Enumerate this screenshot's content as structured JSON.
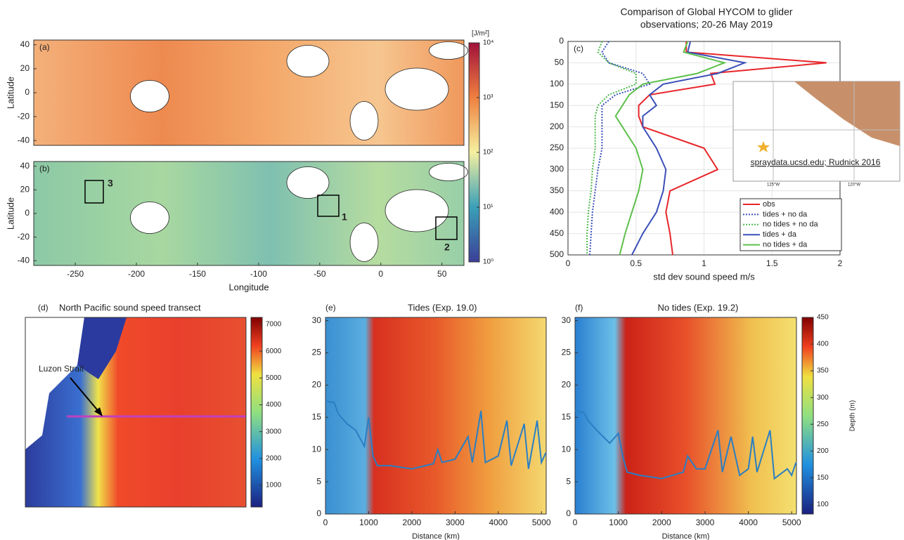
{
  "chart_data": [
    {
      "type": "heatmap",
      "label": "(a)",
      "ylabel": "Latitude",
      "xlim": [
        -284,
        68
      ],
      "ylim": [
        -44,
        44
      ],
      "yticks": [
        -40,
        -20,
        0,
        20,
        40
      ],
      "colorbar": {
        "label": "[J/m²]",
        "log": true,
        "lim": [
          1,
          10000
        ],
        "ticks": [
          {
            "value": 1,
            "label": "10⁰"
          },
          {
            "value": 10,
            "label": "10¹"
          },
          {
            "value": 100,
            "label": "10²"
          },
          {
            "value": 1000,
            "label": "10³"
          },
          {
            "value": 10000,
            "label": "10⁴"
          }
        ]
      }
    },
    {
      "type": "heatmap",
      "label": "(b)",
      "ylabel": "Latitude",
      "xlabel": "Longitude",
      "xlim": [
        -284,
        68
      ],
      "ylim": [
        -44,
        44
      ],
      "xticks": [
        -250,
        -200,
        -150,
        -100,
        -50,
        0,
        50
      ],
      "yticks": [
        -40,
        -20,
        0,
        20,
        40
      ],
      "annotations": [
        "1",
        "2",
        "3"
      ]
    },
    {
      "type": "line",
      "title": [
        "Comparison of Global HYCOM to glider",
        "observations; 20-26 May 2019"
      ],
      "label": "(c)",
      "xlabel": "std dev sound speed m/s",
      "xlim": [
        0,
        2
      ],
      "xticks": [
        0,
        0.5,
        1,
        1.5,
        2
      ],
      "ylim": [
        0,
        500
      ],
      "y_reversed": true,
      "yticks": [
        0,
        50,
        100,
        150,
        200,
        250,
        300,
        350,
        400,
        450,
        500
      ],
      "grid": true,
      "legend": "lower right",
      "y": [
        0,
        25,
        50,
        75,
        100,
        125,
        150,
        175,
        200,
        250,
        300,
        350,
        400,
        450,
        500
      ],
      "series": [
        {
          "name": "obs",
          "color": "#e8262a",
          "linestyle": "solid",
          "values": [
            0.87,
            0.87,
            1.9,
            1.05,
            1.08,
            0.6,
            0.52,
            0.52,
            0.55,
            1.0,
            1.1,
            0.75,
            0.72,
            0.75,
            0.77
          ]
        },
        {
          "name": "tides + no da",
          "color": "#3b4fb8",
          "linestyle": "dotted",
          "values": [
            0.3,
            0.25,
            0.3,
            0.55,
            0.6,
            0.35,
            0.25,
            0.25,
            0.25,
            0.25,
            0.22,
            0.2,
            0.18,
            0.17,
            0.16
          ]
        },
        {
          "name": "no tides + no da",
          "color": "#4cb84a",
          "linestyle": "dotted",
          "values": [
            0.25,
            0.22,
            0.3,
            0.5,
            0.5,
            0.3,
            0.22,
            0.2,
            0.2,
            0.2,
            0.18,
            0.17,
            0.15,
            0.14,
            0.14
          ]
        },
        {
          "name": "tides + da",
          "color": "#3b4fb8",
          "linestyle": "solid",
          "values": [
            0.9,
            0.88,
            1.3,
            1.1,
            0.7,
            0.6,
            0.65,
            0.55,
            0.55,
            0.65,
            0.72,
            0.7,
            0.65,
            0.55,
            0.47
          ]
        },
        {
          "name": "no tides + da",
          "color": "#5cc04a",
          "linestyle": "solid",
          "values": [
            0.88,
            0.85,
            1.15,
            0.95,
            0.55,
            0.45,
            0.4,
            0.35,
            0.4,
            0.5,
            0.55,
            0.52,
            0.47,
            0.42,
            0.38
          ]
        }
      ],
      "inset": {
        "caption": "spraydata.ucsd.edu; Rudnick 2016",
        "xticks": [
          "125°W",
          "120°W"
        ]
      }
    },
    {
      "type": "heatmap",
      "label": "(d)",
      "title": "North Pacific sound speed transect",
      "annotations": [
        "Luzon Strait"
      ],
      "colorbar": {
        "lim": [
          190,
          7260
        ],
        "ticks": [
          1000,
          2000,
          3000,
          4000,
          5000,
          6000,
          7000
        ]
      }
    },
    {
      "type": "line",
      "label": "(e)",
      "title": "Tides (Exp. 19.0)",
      "xlabel": "Distance (km)",
      "xlim": [
        0,
        5110
      ],
      "xticks": [
        0,
        1000,
        2000,
        3000,
        4000,
        5000
      ],
      "ylim": [
        0,
        30.5
      ],
      "yticks": [
        0,
        5,
        10,
        15,
        20,
        25,
        30
      ],
      "x": [
        0,
        200,
        300,
        500,
        700,
        900,
        1000,
        1100,
        1200,
        1500,
        2000,
        2500,
        2600,
        2700,
        3000,
        3300,
        3400,
        3600,
        3700,
        4000,
        4200,
        4300,
        4600,
        4700,
        4900,
        5000,
        5100
      ],
      "series": [
        {
          "color": "#2a7fc4",
          "linestyle": "solid",
          "values": [
            17.5,
            17.3,
            15.5,
            14,
            13,
            10.5,
            15,
            9,
            7.5,
            7.5,
            7.0,
            7.8,
            10,
            8,
            8.5,
            12,
            8,
            16,
            8,
            9,
            14.5,
            7.5,
            14,
            7,
            14.5,
            8,
            9.5
          ]
        }
      ]
    },
    {
      "type": "line",
      "label": "(f)",
      "title": "No tides (Exp. 19.2)",
      "xlabel": "Distance (km)",
      "xlim": [
        0,
        5110
      ],
      "xticks": [
        0,
        1000,
        2000,
        3000,
        4000,
        5000
      ],
      "ylim": [
        0,
        30.5
      ],
      "yticks": [
        0,
        5,
        10,
        15,
        20,
        25,
        30
      ],
      "x": [
        0,
        200,
        300,
        500,
        800,
        1000,
        1100,
        1200,
        1500,
        2000,
        2500,
        2600,
        2800,
        3000,
        3300,
        3400,
        3600,
        3800,
        4000,
        4100,
        4200,
        4500,
        4600,
        4900,
        5000,
        5100
      ],
      "series": [
        {
          "color": "#2a7fc4",
          "linestyle": "solid",
          "values": [
            16,
            15.8,
            14.5,
            13,
            11,
            12.5,
            9,
            6.5,
            6,
            5.5,
            6.5,
            9,
            7,
            7,
            13,
            6.5,
            12,
            6,
            7,
            12,
            6.5,
            13,
            5.5,
            7,
            6,
            8
          ]
        }
      ],
      "colorbar": {
        "label": "Depth (m)",
        "lim": [
          82,
          450
        ],
        "ticks": [
          100,
          150,
          200,
          250,
          300,
          350,
          400,
          450
        ]
      }
    }
  ]
}
